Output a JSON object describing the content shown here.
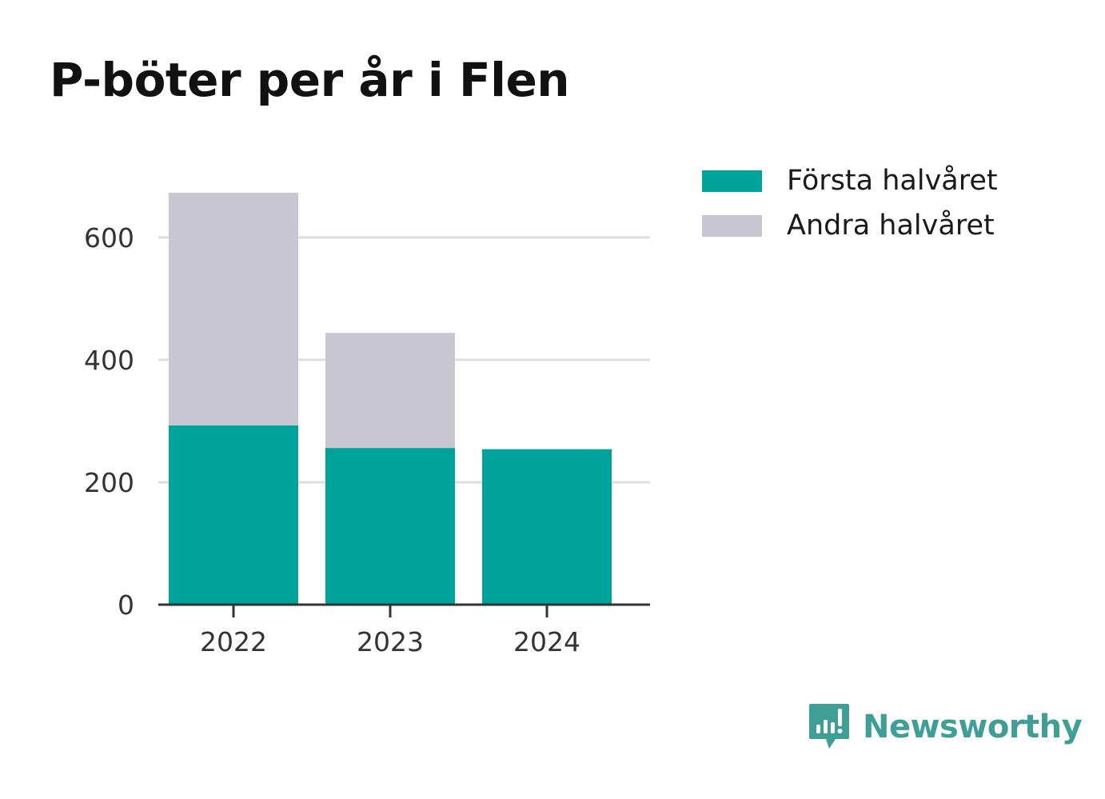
{
  "chart_data": {
    "type": "bar",
    "stacked": true,
    "title": "P-böter per år i Flen",
    "xlabel": "",
    "ylabel": "",
    "categories": [
      "2022",
      "2023",
      "2024"
    ],
    "series": [
      {
        "name": "Första halvåret",
        "color": "#00a39a",
        "values": [
          293,
          256,
          254
        ]
      },
      {
        "name": "Andra halvåret",
        "color": "#c8c7d1",
        "values": [
          380,
          188,
          0
        ]
      }
    ],
    "yticks": [
      0,
      200,
      400,
      600
    ],
    "ylim": [
      0,
      673
    ],
    "grid": true,
    "legend_position": "top-right"
  },
  "brand": {
    "name": "Newsworthy",
    "logo_icon": "bar-chart-speech-bubble-icon",
    "color": "#3f9e96"
  }
}
